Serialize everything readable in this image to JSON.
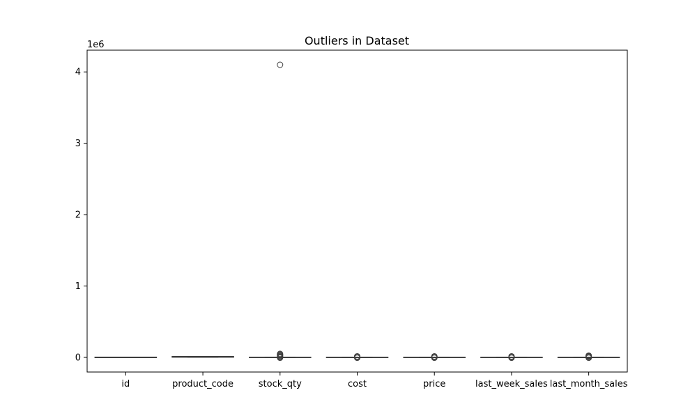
{
  "chart_data": {
    "type": "box",
    "title": "Outliers in Dataset",
    "xlabel": "",
    "ylabel": "",
    "y_scale_label": "1e6",
    "ylim": [
      -205000,
      4305000
    ],
    "yticks": [
      0,
      1,
      2,
      3,
      4
    ],
    "yticks_scale": 1000000,
    "categories": [
      "id",
      "product_code",
      "stock_qty",
      "cost",
      "price",
      "last_week_sales",
      "last_month_sales"
    ],
    "boxes": [
      {
        "category": "id",
        "q1": -5000,
        "median": 0,
        "q3": 5000,
        "whisker_low": -5000,
        "whisker_high": 5000,
        "outliers": []
      },
      {
        "category": "product_code",
        "q1": 1000,
        "median": 8000,
        "q3": 15000,
        "whisker_low": 1000,
        "whisker_high": 15000,
        "outliers": []
      },
      {
        "category": "stock_qty",
        "q1": -3000,
        "median": 0,
        "q3": 3000,
        "whisker_low": -4000,
        "whisker_high": 4000,
        "outliers": [
          4100000,
          50000,
          40000,
          30000,
          20000,
          10000,
          5000,
          -5000
        ]
      },
      {
        "category": "cost",
        "q1": -3000,
        "median": 0,
        "q3": 3000,
        "whisker_low": -4000,
        "whisker_high": 4000,
        "outliers": [
          15000,
          10000,
          6000,
          -6000
        ]
      },
      {
        "category": "price",
        "q1": -3000,
        "median": 0,
        "q3": 3000,
        "whisker_low": -4000,
        "whisker_high": 4000,
        "outliers": [
          15000,
          10000,
          6000,
          -6000
        ]
      },
      {
        "category": "last_week_sales",
        "q1": -3000,
        "median": 0,
        "q3": 3000,
        "whisker_low": -4000,
        "whisker_high": 4000,
        "outliers": [
          15000,
          10000,
          6000,
          -6000
        ]
      },
      {
        "category": "last_month_sales",
        "q1": -3000,
        "median": 0,
        "q3": 3000,
        "whisker_low": -4000,
        "whisker_high": 4000,
        "outliers": [
          25000,
          18000,
          12000,
          6000,
          -6000
        ]
      }
    ],
    "grid": false,
    "colors": {
      "box_fill": "#4c72b0",
      "line": "#3d3d3d",
      "axis": "#000000"
    }
  }
}
